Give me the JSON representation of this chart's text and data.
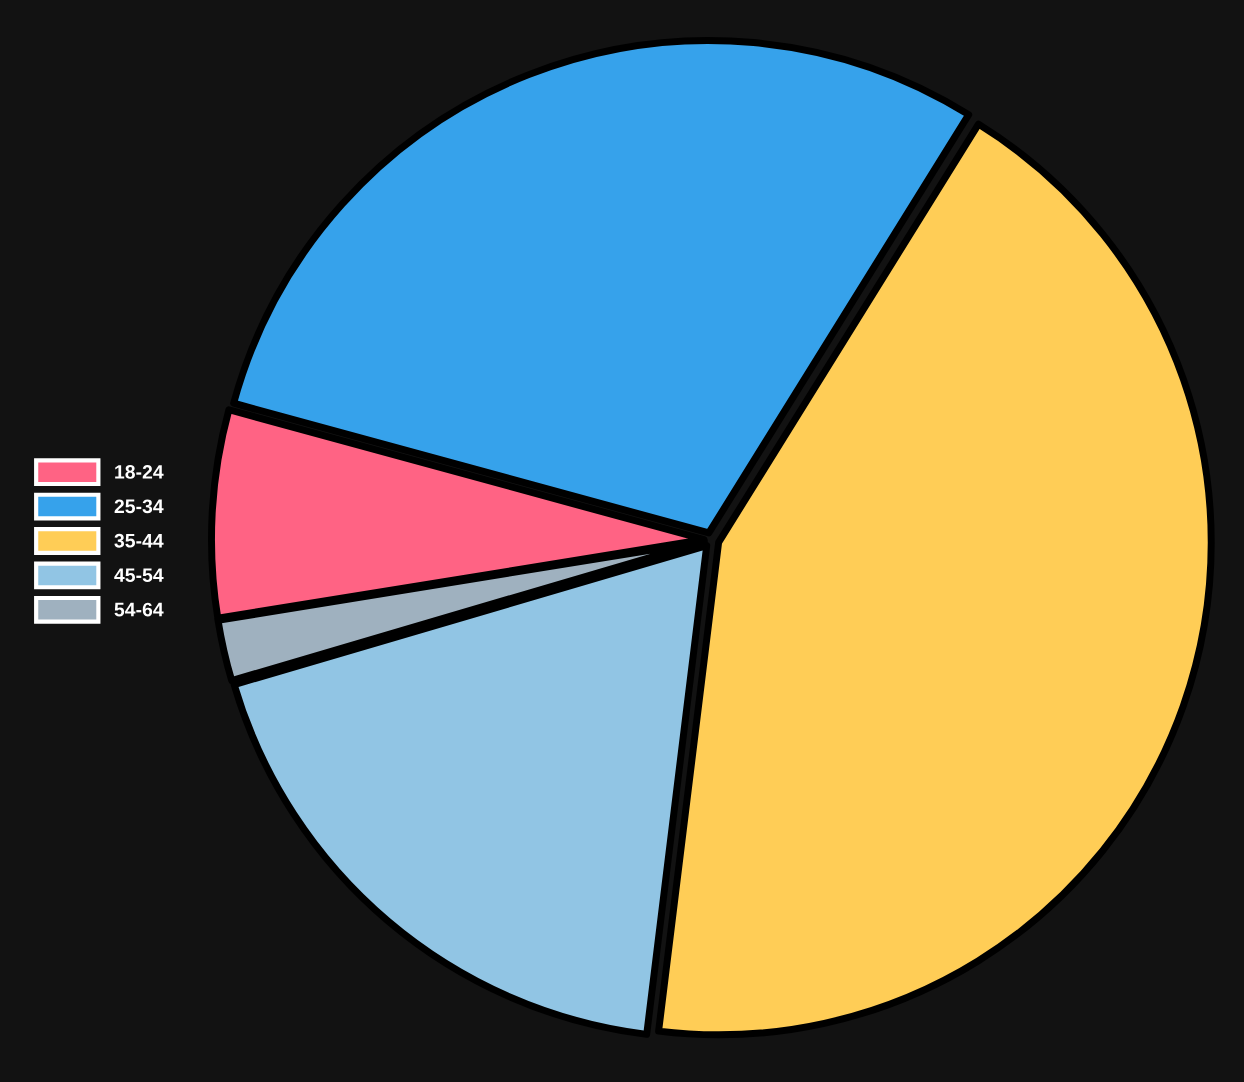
{
  "chart_data": {
    "type": "pie",
    "categories": [
      "18-24",
      "25-34",
      "35-44",
      "45-54",
      "54-64"
    ],
    "values": [
      6.8,
      29.6,
      43.1,
      18.5,
      2.0
    ],
    "colors": [
      "#ff6384",
      "#36a2eb",
      "#ffcd56",
      "#91c5e4",
      "#9fb1bf"
    ],
    "legend": "left"
  }
}
